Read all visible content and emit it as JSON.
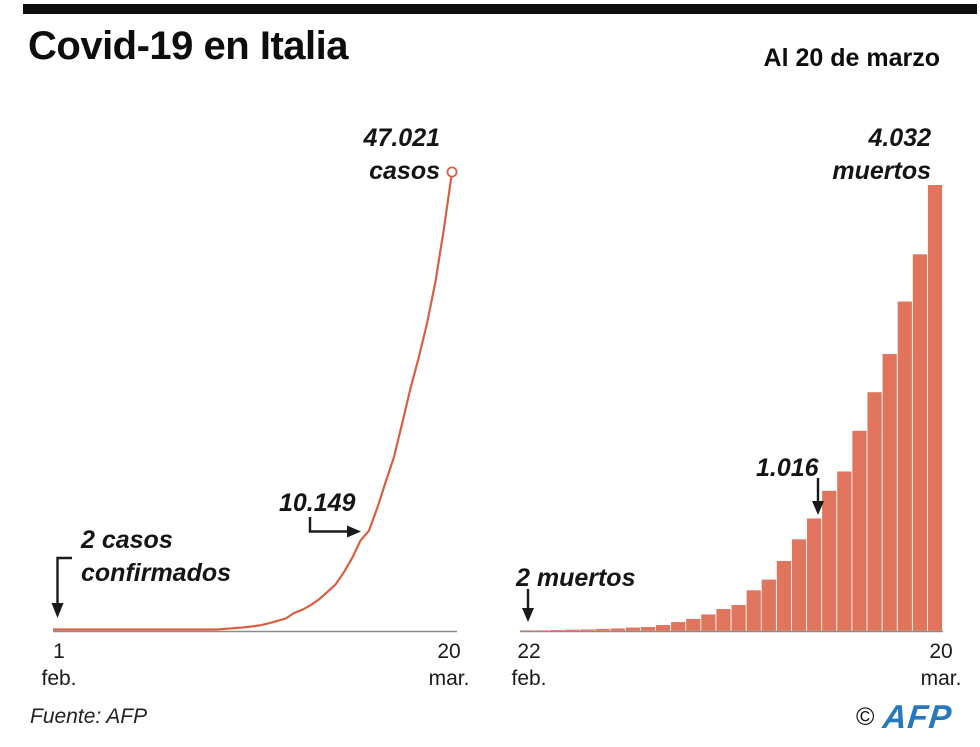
{
  "header": {
    "title": "Covid-19 en Italia",
    "date_note": "Al 20 de marzo"
  },
  "colors": {
    "line": "#d95f43",
    "bar": "#e0745c",
    "axis": "#8c8c8c",
    "arrow": "#1a1a1a",
    "afp_blue": "#2878be",
    "text": "#151515"
  },
  "cases_chart": {
    "annotations": {
      "peak_value": "47.021",
      "peak_label": "casos",
      "mid_value": "10.149",
      "start_line1": "2 casos",
      "start_line2": "confirmados"
    },
    "x_axis": {
      "start_day": "1",
      "start_month": "feb.",
      "end_day": "20",
      "end_month": "mar."
    }
  },
  "deaths_chart": {
    "annotations": {
      "peak_value": "4.032",
      "peak_label": "muertos",
      "mid_value": "1.016",
      "start_label": "2 muertos"
    },
    "x_axis": {
      "start_day": "22",
      "start_month": "feb.",
      "end_day": "20",
      "end_month": "mar."
    }
  },
  "footer": {
    "source": "Fuente: AFP",
    "copyright": "©",
    "logo": "AFP"
  },
  "chart_data": [
    {
      "type": "line",
      "title": "Casos confirmados de Covid-19 en Italia",
      "x_start": "1 feb.",
      "x_end": "20 mar.",
      "n_points": 49,
      "ylim": [
        0,
        47021
      ],
      "grid": false,
      "annotated_points": [
        {
          "label": "2 casos confirmados",
          "value": 2,
          "x": "1 feb."
        },
        {
          "label": "10.149",
          "value": 10149,
          "x": "10 mar."
        },
        {
          "label": "47.021 casos",
          "value": 47021,
          "x": "20 mar."
        }
      ],
      "values": [
        2,
        2,
        2,
        2,
        2,
        2,
        3,
        3,
        3,
        3,
        3,
        3,
        3,
        3,
        3,
        3,
        3,
        3,
        3,
        3,
        20,
        79,
        150,
        227,
        320,
        445,
        650,
        888,
        1128,
        1694,
        2036,
        2502,
        3089,
        3858,
        4636,
        5883,
        7375,
        9172,
        10149,
        12462,
        15113,
        17660,
        21157,
        24747,
        27980,
        31506,
        35713,
        41035,
        47021
      ]
    },
    {
      "type": "bar",
      "title": "Muertos por Covid-19 en Italia",
      "x_start": "22 feb.",
      "x_end": "20 mar.",
      "n_points": 28,
      "ylim": [
        0,
        4032
      ],
      "grid": false,
      "annotated_points": [
        {
          "label": "2 muertos",
          "value": 2,
          "x": "22 feb."
        },
        {
          "label": "1.016",
          "value": 1016,
          "x": "12 mar."
        },
        {
          "label": "4.032 muertos",
          "value": 4032,
          "x": "20 mar."
        }
      ],
      "values": [
        2,
        3,
        7,
        10,
        12,
        17,
        21,
        29,
        34,
        52,
        79,
        107,
        148,
        197,
        233,
        366,
        463,
        631,
        827,
        1016,
        1266,
        1441,
        1809,
        2158,
        2503,
        2978,
        3405,
        4032
      ]
    }
  ]
}
